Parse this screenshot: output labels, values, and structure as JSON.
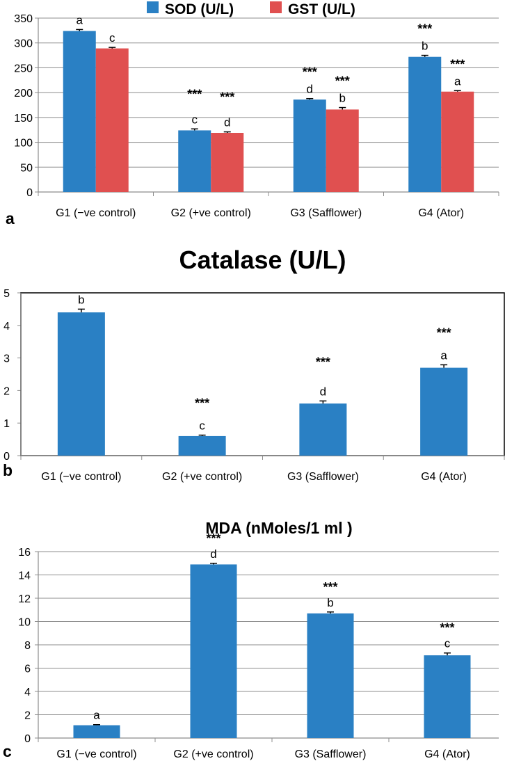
{
  "chart_data": [
    {
      "panel_label": "a",
      "type": "bar",
      "title": "",
      "categories": [
        "G1 (−ve control)",
        "G2 (+ve control)",
        "G3 (Safflower)",
        "G4 (Ator)"
      ],
      "series": [
        {
          "name": "SOD (U/L)",
          "color": "#2a80c4",
          "values": [
            324,
            124,
            186,
            272
          ],
          "errors": [
            3,
            3,
            2,
            3
          ],
          "letters": [
            "a",
            "c",
            "d",
            "b"
          ],
          "stars": [
            "",
            "***",
            "***",
            "***"
          ]
        },
        {
          "name": "GST (U/L)",
          "color": "#e05050",
          "values": [
            289,
            119,
            166,
            202
          ],
          "errors": [
            2,
            2,
            4,
            2
          ],
          "letters": [
            "c",
            "d",
            "b",
            "a"
          ],
          "stars": [
            "",
            "***",
            "***",
            "***"
          ]
        }
      ],
      "ylim": [
        0,
        350
      ],
      "yticks": [
        "0",
        "50",
        "100",
        "150",
        "200",
        "250",
        "300",
        "350"
      ],
      "legend_position": "top",
      "grid": true
    },
    {
      "panel_label": "b",
      "type": "bar",
      "title": "Catalase (U/L)",
      "categories": [
        "G1 (−ve control)",
        "G2 (+ve control)",
        "G3 (Safflower)",
        "G4 (Ator)"
      ],
      "series": [
        {
          "name": "Catalase (U/L)",
          "color": "#2a80c4",
          "values": [
            4.4,
            0.6,
            1.6,
            2.7
          ],
          "errors": [
            0.1,
            0.03,
            0.08,
            0.09
          ],
          "letters": [
            "b",
            "c",
            "d",
            "a"
          ],
          "stars": [
            "",
            "***",
            "***",
            "***"
          ]
        }
      ],
      "ylim": [
        0,
        5
      ],
      "yticks": [
        "0",
        "1",
        "2",
        "3",
        "4",
        "5"
      ],
      "grid": false
    },
    {
      "panel_label": "c",
      "type": "bar",
      "title": "MDA (nMoles/1 ml )",
      "categories": [
        "G1 (−ve control)",
        "G2 (+ve control)",
        "G3 (Safflower)",
        "G4 (Ator)"
      ],
      "series": [
        {
          "name": "MDA (nMoles/1 ml )",
          "color": "#2a80c4",
          "values": [
            1.1,
            14.9,
            10.7,
            7.1
          ],
          "errors": [
            0.05,
            0.1,
            0.12,
            0.2
          ],
          "letters": [
            "a",
            "d",
            "b",
            "c"
          ],
          "stars": [
            "",
            "***",
            "***",
            "***"
          ]
        }
      ],
      "ylim": [
        0,
        16
      ],
      "yticks": [
        "0",
        "2",
        "4",
        "6",
        "8",
        "10",
        "12",
        "14",
        "16"
      ],
      "grid": true
    }
  ]
}
